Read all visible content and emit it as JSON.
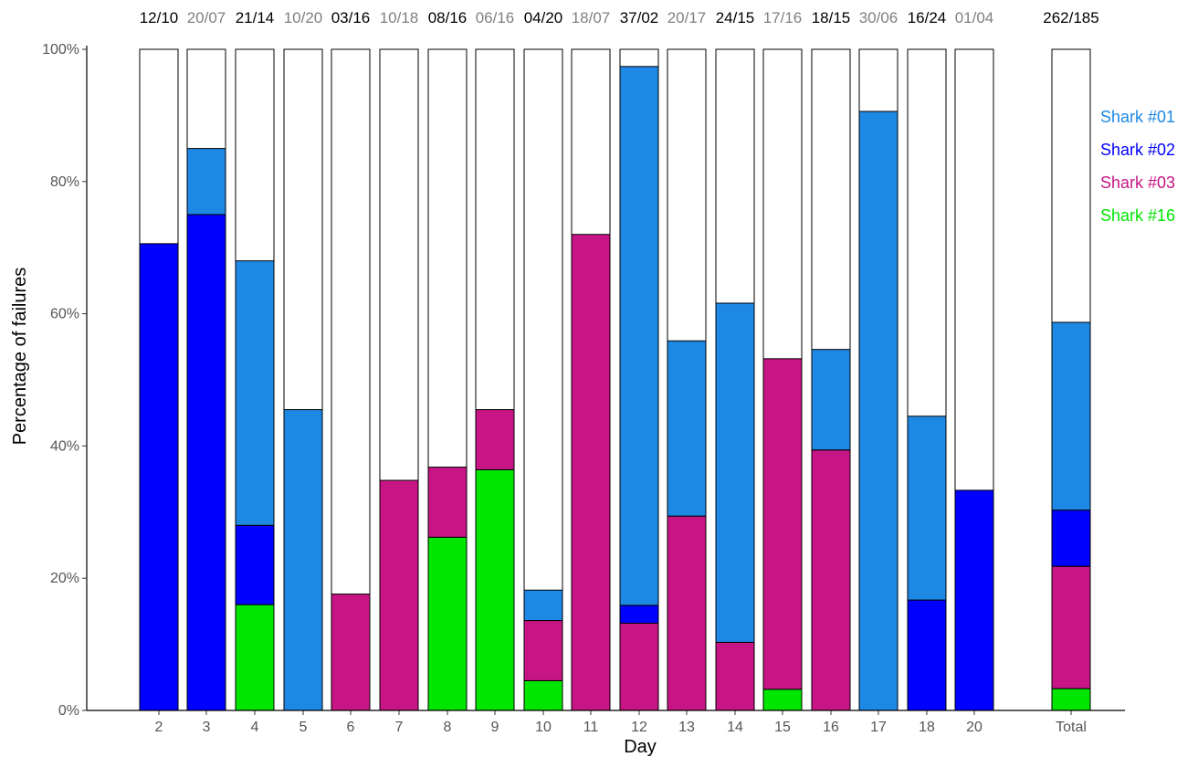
{
  "chart_data": {
    "type": "bar",
    "stacked": true,
    "normalized": true,
    "xlabel": "Day",
    "ylabel": "Percentage of failures",
    "ylim": [
      0,
      100
    ],
    "y_ticks": [
      "0%",
      "20%",
      "40%",
      "60%",
      "80%",
      "100%"
    ],
    "categories": [
      "2",
      "3",
      "4",
      "5",
      "6",
      "7",
      "8",
      "9",
      "10",
      "11",
      "12",
      "13",
      "14",
      "15",
      "16",
      "17",
      "18",
      "20",
      "Total"
    ],
    "top_labels": [
      "12/10",
      "20/07",
      "21/14",
      "10/20",
      "03/16",
      "10/18",
      "08/16",
      "06/16",
      "04/20",
      "18/07",
      "37/02",
      "20/17",
      "24/15",
      "17/16",
      "18/15",
      "30/06",
      "16/24",
      "01/04",
      "262/185"
    ],
    "top_label_colors": [
      "#000000",
      "#808080",
      "#000000",
      "#808080",
      "#000000",
      "#808080",
      "#000000",
      "#808080",
      "#000000",
      "#808080",
      "#000000",
      "#808080",
      "#000000",
      "#808080",
      "#000000",
      "#808080",
      "#000000",
      "#808080",
      "#000000"
    ],
    "series": [
      {
        "name": "Shark #16",
        "color": "#00E600",
        "values": [
          0,
          0,
          16,
          0,
          0,
          0,
          26.2,
          36.4,
          4.5,
          0,
          0,
          0,
          0,
          3.2,
          0,
          0,
          0,
          0,
          3.3
        ]
      },
      {
        "name": "Shark #03",
        "color": "#C71585",
        "values": [
          0,
          0,
          0,
          0,
          17.6,
          34.8,
          10.6,
          9.1,
          9.1,
          72,
          13.2,
          29.4,
          10.3,
          50,
          39.4,
          0,
          0,
          0,
          18.5
        ]
      },
      {
        "name": "Shark #02",
        "color": "#0000FF",
        "values": [
          70.6,
          75,
          12,
          0,
          0,
          0,
          0,
          0,
          0,
          0,
          2.7,
          0,
          0,
          0,
          0,
          0,
          16.7,
          33.3,
          8.5
        ]
      },
      {
        "name": "Shark #01",
        "color": "#1E88E5",
        "values": [
          0,
          10,
          40,
          45.5,
          0,
          0,
          0,
          0,
          4.6,
          0,
          81.5,
          26.5,
          51.3,
          0,
          15.2,
          90.6,
          27.8,
          0,
          28.4
        ]
      }
    ],
    "legend": {
      "placement": "right",
      "entries": [
        {
          "label": "Shark #01",
          "color": "#1E88E5"
        },
        {
          "label": "Shark #02",
          "color": "#0000FF"
        },
        {
          "label": "Shark #03",
          "color": "#C71585"
        },
        {
          "label": "Shark #16",
          "color": "#00E600"
        }
      ]
    },
    "grid": false
  }
}
